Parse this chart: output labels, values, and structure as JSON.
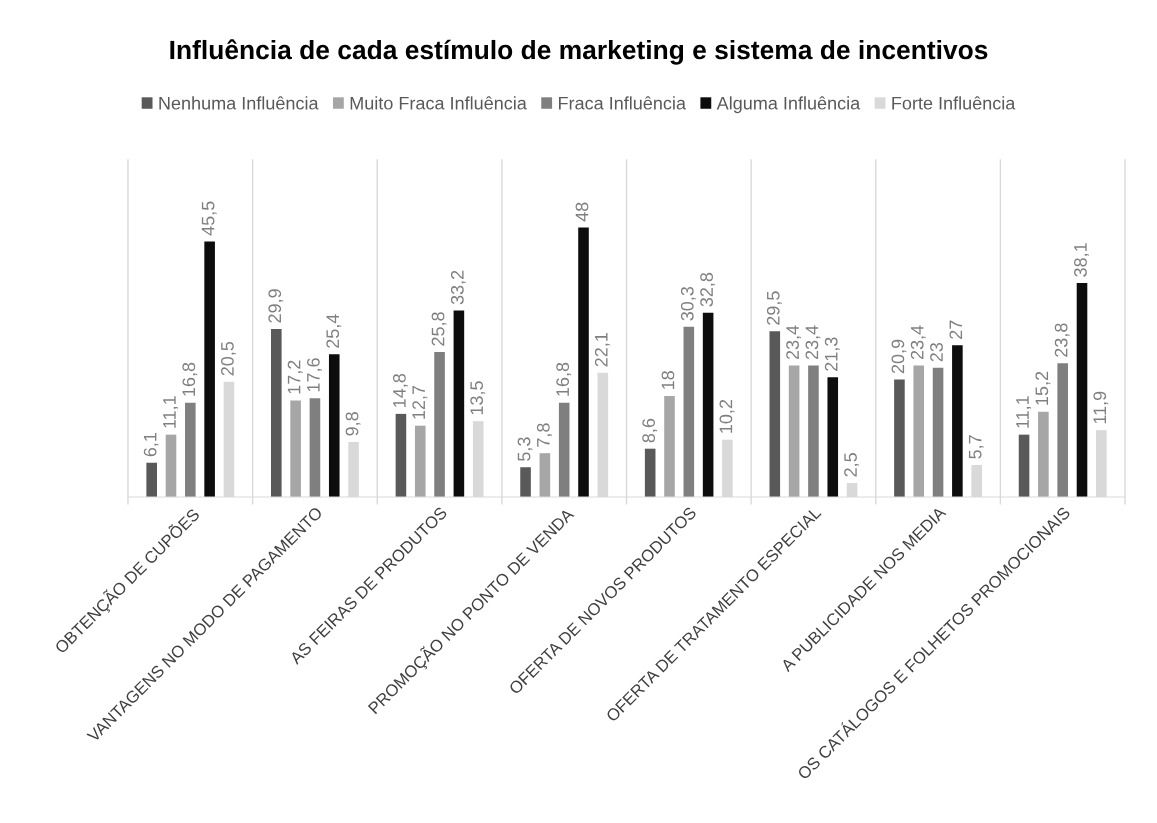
{
  "chart_data": {
    "type": "bar",
    "title": "Influência de cada estímulo de marketing e sistema de incentivos",
    "categories": [
      "OBTENÇÃO DE CUPÕES",
      "VANTAGENS NO MODO DE PAGAMENTO",
      "AS FEIRAS DE PRODUTOS",
      "PROMOÇÃO NO PONTO DE VENDA",
      "OFERTA DE NOVOS PRODUTOS",
      "OFERTA DE TRATAMENTO ESPECIAL",
      "A PUBLICIDADE NOS MEDIA",
      "OS CATÁLOGOS E FOLHETOS PROMOCIONAIS"
    ],
    "series": [
      {
        "name": "Nenhuma Influência",
        "color": "#595959",
        "values": [
          6.1,
          29.9,
          14.8,
          5.3,
          8.6,
          29.5,
          20.9,
          11.1
        ],
        "value_labels": [
          "6,1",
          "29,9",
          "14,8",
          "5,3",
          "8,6",
          "29,5",
          "20,9",
          "11,1"
        ]
      },
      {
        "name": "Muito Fraca Influência",
        "color": "#a6a6a6",
        "values": [
          11.1,
          17.2,
          12.7,
          7.8,
          18,
          23.4,
          23.4,
          15.2
        ],
        "value_labels": [
          "11,1",
          "17,2",
          "12,7",
          "7,8",
          "18",
          "23,4",
          "23,4",
          "15,2"
        ]
      },
      {
        "name": "Fraca Influência",
        "color": "#7f7f7f",
        "values": [
          16.8,
          17.6,
          25.8,
          16.8,
          30.3,
          23.4,
          23,
          23.8
        ],
        "value_labels": [
          "16,8",
          "17,6",
          "25,8",
          "16,8",
          "30,3",
          "23,4",
          "23",
          "23,8"
        ]
      },
      {
        "name": "Alguma Influência",
        "color": "#0d0d0d",
        "values": [
          45.5,
          25.4,
          33.2,
          48,
          32.8,
          21.3,
          27,
          38.1
        ],
        "value_labels": [
          "45,5",
          "25,4",
          "33,2",
          "48",
          "32,8",
          "21,3",
          "27",
          "38,1"
        ]
      },
      {
        "name": "Forte Influência",
        "color": "#d9d9d9",
        "values": [
          20.5,
          9.8,
          13.5,
          22.1,
          10.2,
          2.5,
          5.7,
          11.9
        ],
        "value_labels": [
          "20,5",
          "9,8",
          "13,5",
          "22,1",
          "10,2",
          "2,5",
          "5,7",
          "11,9"
        ]
      }
    ],
    "grid": "x",
    "legend": "top"
  }
}
